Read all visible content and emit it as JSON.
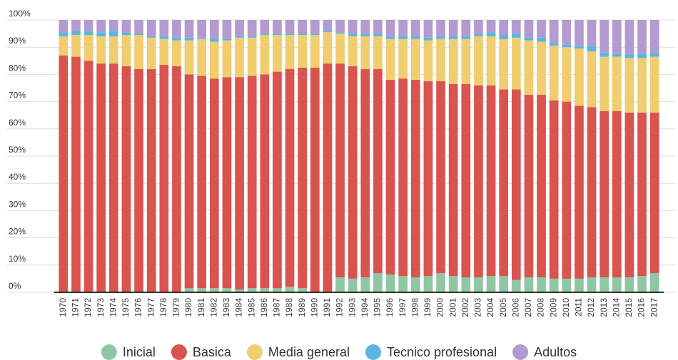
{
  "chart_data": {
    "type": "stacked_bar",
    "categories": [
      "1970",
      "1971",
      "1972",
      "1973",
      "1974",
      "1975",
      "1976",
      "1977",
      "1978",
      "1979",
      "1980",
      "1981",
      "1982",
      "1983",
      "1984",
      "1985",
      "1986",
      "1987",
      "1988",
      "1989",
      "1990",
      "1991",
      "1992",
      "1993",
      "1994",
      "1995",
      "1996",
      "1997",
      "1998",
      "1999",
      "2000",
      "2001",
      "2002",
      "2003",
      "2004",
      "2005",
      "2006",
      "2007",
      "2008",
      "2009",
      "2010",
      "2011",
      "2012",
      "2013",
      "2014",
      "2015",
      "2016",
      "2017"
    ],
    "series": [
      {
        "name": "Inicial",
        "color": "#8fc7a5",
        "values": [
          0,
          0,
          0,
          0,
          0,
          0,
          0,
          0,
          0,
          0,
          1.5,
          1.5,
          1.5,
          1.5,
          1,
          1.5,
          1.5,
          1.5,
          2,
          1.5,
          0,
          0,
          5.5,
          5,
          5.5,
          7,
          6.5,
          6,
          5.5,
          6,
          7,
          6,
          5.5,
          5.5,
          6,
          6,
          4.5,
          5.5,
          5.5,
          5,
          5,
          5,
          5.5,
          5.5,
          5.5,
          5.5,
          6,
          7
        ]
      },
      {
        "name": "Basica",
        "color": "#d9534f",
        "values": [
          87,
          86.5,
          85,
          84,
          84,
          83,
          82,
          82,
          83.5,
          83,
          78.5,
          78,
          77,
          77.5,
          78,
          78,
          78.5,
          79.5,
          80,
          81,
          82.5,
          84,
          78.5,
          78,
          76.5,
          75,
          71.5,
          72.5,
          72.5,
          71.5,
          70.5,
          70.5,
          71,
          70.5,
          70,
          68.5,
          70,
          67,
          67,
          65.5,
          65,
          63.5,
          62.5,
          61,
          61,
          60.5,
          60,
          59
        ]
      },
      {
        "name": "Media general",
        "color": "#f0cd6e",
        "values": [
          7,
          8,
          9.5,
          10,
          10,
          11.5,
          12.5,
          11.5,
          9.5,
          9.5,
          12.5,
          13.5,
          13.5,
          13.5,
          14.5,
          14,
          14.5,
          13.5,
          12.5,
          12,
          12,
          11.5,
          11,
          11,
          12,
          12,
          15,
          14.5,
          15,
          15,
          15.5,
          16.5,
          16.5,
          18,
          18,
          18.5,
          19,
          20,
          19.5,
          20,
          20,
          21,
          20.5,
          20,
          20,
          20,
          20,
          20.5
        ]
      },
      {
        "name": "Tecnico profesional",
        "color": "#5bb5e3",
        "values": [
          1.5,
          1.5,
          1.5,
          1.5,
          2,
          1,
          0.5,
          0.5,
          1,
          1,
          1,
          0.5,
          1,
          0.5,
          0.5,
          0.5,
          0.5,
          0.5,
          0.5,
          0.5,
          0.5,
          0.5,
          0.5,
          1,
          1,
          1,
          1,
          1,
          1,
          1,
          1,
          1,
          1,
          1,
          1.5,
          1.5,
          1.5,
          1,
          1.5,
          1,
          1,
          1,
          2,
          1.5,
          1,
          1.5,
          1.5,
          1.5
        ]
      },
      {
        "name": "Adultos",
        "color": "#b39ad0",
        "values": [
          4.5,
          4,
          4,
          4.5,
          4,
          4.5,
          5,
          6,
          6,
          6.5,
          6.5,
          6.5,
          7,
          7,
          6,
          6,
          5,
          5,
          5,
          5,
          5,
          4,
          4.5,
          5,
          5,
          5,
          6,
          6,
          6,
          6.5,
          6,
          6,
          6,
          5,
          4.5,
          5.5,
          5,
          6.5,
          6.5,
          8.5,
          9,
          9.5,
          9.5,
          12,
          12.5,
          12.5,
          12.5,
          12
        ]
      }
    ],
    "ylim": [
      0,
      100
    ],
    "yticks": [
      {
        "value": 0,
        "label": "0%"
      },
      {
        "value": 10,
        "label": "10%"
      },
      {
        "value": 20,
        "label": "20%"
      },
      {
        "value": 30,
        "label": "30%"
      },
      {
        "value": 40,
        "label": "40%"
      },
      {
        "value": 50,
        "label": "50%"
      },
      {
        "value": 60,
        "label": "60%"
      },
      {
        "value": 70,
        "label": "70%"
      },
      {
        "value": 80,
        "label": "80%"
      },
      {
        "value": 90,
        "label": "90%"
      },
      {
        "value": 100,
        "label": "100%"
      }
    ],
    "grid": true,
    "legend": "bottom"
  }
}
